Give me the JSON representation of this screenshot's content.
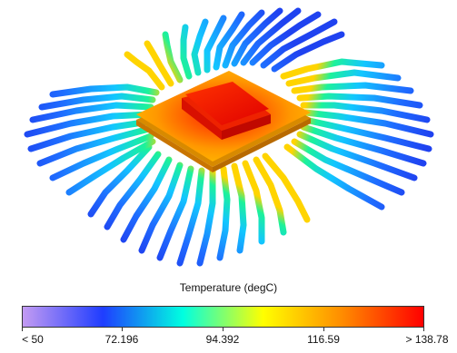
{
  "legend": {
    "title": "Temperature (degC)",
    "tick_labels": [
      "< 50",
      "72.196",
      "94.392",
      "116.59",
      "> 138.78"
    ],
    "colors": [
      "#c39bf2",
      "#1f3dff",
      "#00ffe0",
      "#ffff00",
      "#ff8a00",
      "#ff0000"
    ]
  }
}
